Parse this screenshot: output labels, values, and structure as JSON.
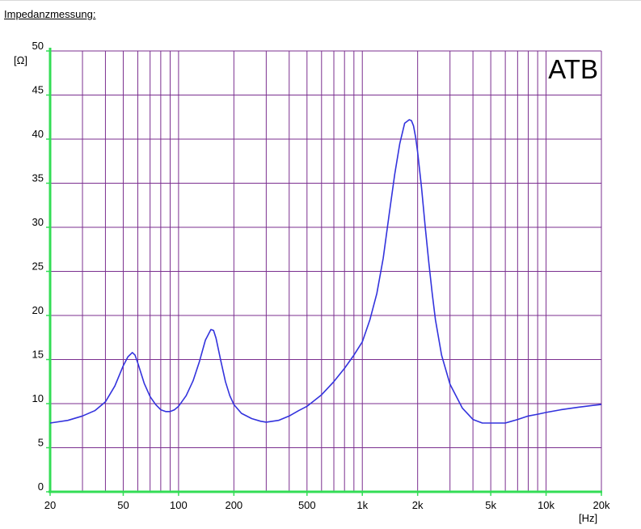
{
  "page": {
    "heading": "Impedanzmessung:"
  },
  "chart_data": {
    "type": "line",
    "title": "ATB",
    "ylabel": "[Ω]",
    "xlabel": "[Hz]",
    "x_scale": "log",
    "xlim": [
      20,
      20000
    ],
    "ylim": [
      0,
      50
    ],
    "grid": true,
    "x_ticks": [
      {
        "value": 20,
        "label": "20"
      },
      {
        "value": 50,
        "label": "50"
      },
      {
        "value": 100,
        "label": "100"
      },
      {
        "value": 200,
        "label": "200"
      },
      {
        "value": 500,
        "label": "500"
      },
      {
        "value": 1000,
        "label": "1k"
      },
      {
        "value": 2000,
        "label": "2k"
      },
      {
        "value": 5000,
        "label": "5k"
      },
      {
        "value": 10000,
        "label": "10k"
      },
      {
        "value": 20000,
        "label": "20k"
      }
    ],
    "y_ticks": [
      0,
      5,
      10,
      15,
      20,
      25,
      30,
      35,
      40,
      45,
      50
    ],
    "x_grid": [
      20,
      30,
      40,
      50,
      60,
      70,
      80,
      90,
      100,
      200,
      300,
      400,
      500,
      600,
      700,
      800,
      900,
      1000,
      2000,
      3000,
      4000,
      5000,
      6000,
      7000,
      8000,
      9000,
      10000,
      20000
    ],
    "colors": {
      "grid": "#7b2f8f",
      "axis": "#33dd55",
      "series": "#3333dd"
    },
    "series": [
      {
        "x": [
          20,
          25,
          30,
          35,
          40,
          45,
          50,
          53,
          56,
          58,
          60,
          65,
          70,
          75,
          80,
          85,
          90,
          95,
          100,
          110,
          120,
          130,
          140,
          150,
          155,
          160,
          170,
          180,
          190,
          200,
          220,
          250,
          280,
          300,
          350,
          400,
          450,
          500,
          600,
          700,
          800,
          900,
          1000,
          1100,
          1200,
          1300,
          1400,
          1500,
          1600,
          1700,
          1800,
          1850,
          1900,
          1950,
          2000,
          2100,
          2200,
          2300,
          2400,
          2500,
          2700,
          3000,
          3500,
          4000,
          4500,
          5000,
          5500,
          6000,
          7000,
          8000,
          9000,
          10000,
          12000,
          15000,
          18000,
          20000
        ],
        "y": [
          7.8,
          8.1,
          8.6,
          9.2,
          10.2,
          12,
          14.3,
          15.3,
          15.8,
          15.5,
          14.6,
          12.3,
          10.8,
          9.9,
          9.3,
          9.1,
          9.1,
          9.3,
          9.7,
          10.9,
          12.6,
          14.8,
          17.2,
          18.4,
          18.3,
          17.4,
          14.8,
          12.5,
          10.9,
          9.9,
          8.9,
          8.3,
          8.0,
          7.9,
          8.1,
          8.6,
          9.2,
          9.7,
          11,
          12.5,
          14,
          15.5,
          17,
          19.5,
          22.5,
          26.5,
          31.5,
          36,
          39.5,
          41.8,
          42.2,
          42.1,
          41.5,
          40.2,
          38.5,
          34.5,
          30,
          26,
          22.5,
          19.5,
          15.5,
          12.2,
          9.5,
          8.2,
          7.8,
          7.8,
          7.8,
          7.8,
          8.2,
          8.6,
          8.8,
          9,
          9.3,
          9.6,
          9.8,
          9.9
        ]
      }
    ]
  }
}
